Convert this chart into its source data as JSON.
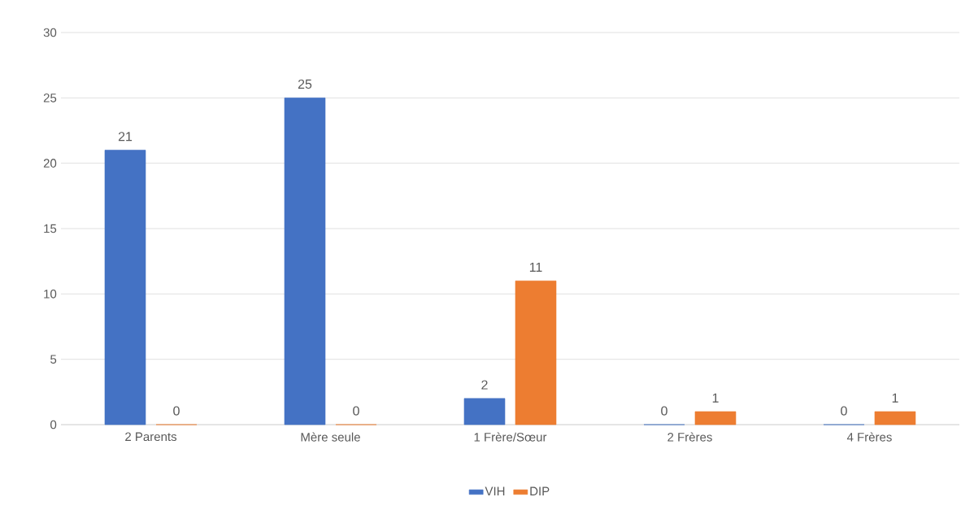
{
  "chart_data": {
    "type": "bar",
    "categories": [
      "2 Parents",
      "Mère seule",
      "1 Frère/Sœur",
      "2 Frères",
      "4 Frères"
    ],
    "series": [
      {
        "name": "VIH",
        "color": "#4472c4",
        "values": [
          21,
          25,
          2,
          0,
          0
        ]
      },
      {
        "name": "DIP",
        "color": "#ed7d31",
        "values": [
          0,
          0,
          11,
          1,
          1
        ]
      }
    ],
    "ylim": [
      0,
      30
    ],
    "yticks": [
      0,
      5,
      10,
      15,
      20,
      25,
      30
    ],
    "grid": "y",
    "legend": "bottom",
    "data_labels": true
  }
}
